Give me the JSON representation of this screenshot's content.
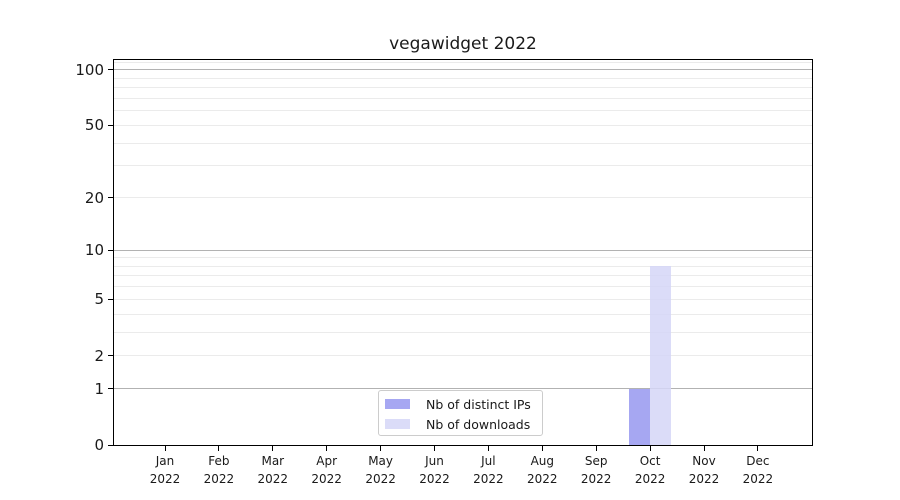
{
  "chart_data": {
    "type": "bar",
    "title": "vegawidget 2022",
    "x_month_labels": [
      "Jan",
      "Feb",
      "Mar",
      "Apr",
      "May",
      "Jun",
      "Jul",
      "Aug",
      "Sep",
      "Oct",
      "Nov",
      "Dec"
    ],
    "x_year_label": "2022",
    "series": [
      {
        "name": "Nb of distinct IPs",
        "color": "rgba(150,152,240,0.85)",
        "values": [
          0,
          0,
          0,
          0,
          0,
          0,
          0,
          0,
          0,
          1,
          0,
          0
        ]
      },
      {
        "name": "Nb of downloads",
        "color": "rgba(213,214,247,0.85)",
        "values": [
          0,
          0,
          0,
          0,
          0,
          0,
          0,
          0,
          0,
          8,
          0,
          0
        ]
      }
    ],
    "y_scale": "log1p",
    "ylim": [
      0,
      113
    ],
    "y_tick_values": [
      0,
      1,
      2,
      5,
      10,
      20,
      50,
      100
    ],
    "y_major_gridlines": [
      1,
      10,
      100
    ],
    "y_minor_gridlines": [
      2,
      3,
      4,
      5,
      6,
      7,
      8,
      9,
      20,
      30,
      40,
      50,
      60,
      70,
      80,
      90,
      110
    ],
    "grid": true,
    "legend": {
      "location": "lower center",
      "entries": [
        "Nb of distinct IPs",
        "Nb of downloads"
      ]
    },
    "colors": {
      "major_grid": "#b2b2b2",
      "minor_grid": "#ebebeb",
      "spine": "#000000",
      "text": "#1a1a1a",
      "background": "#ffffff"
    }
  }
}
